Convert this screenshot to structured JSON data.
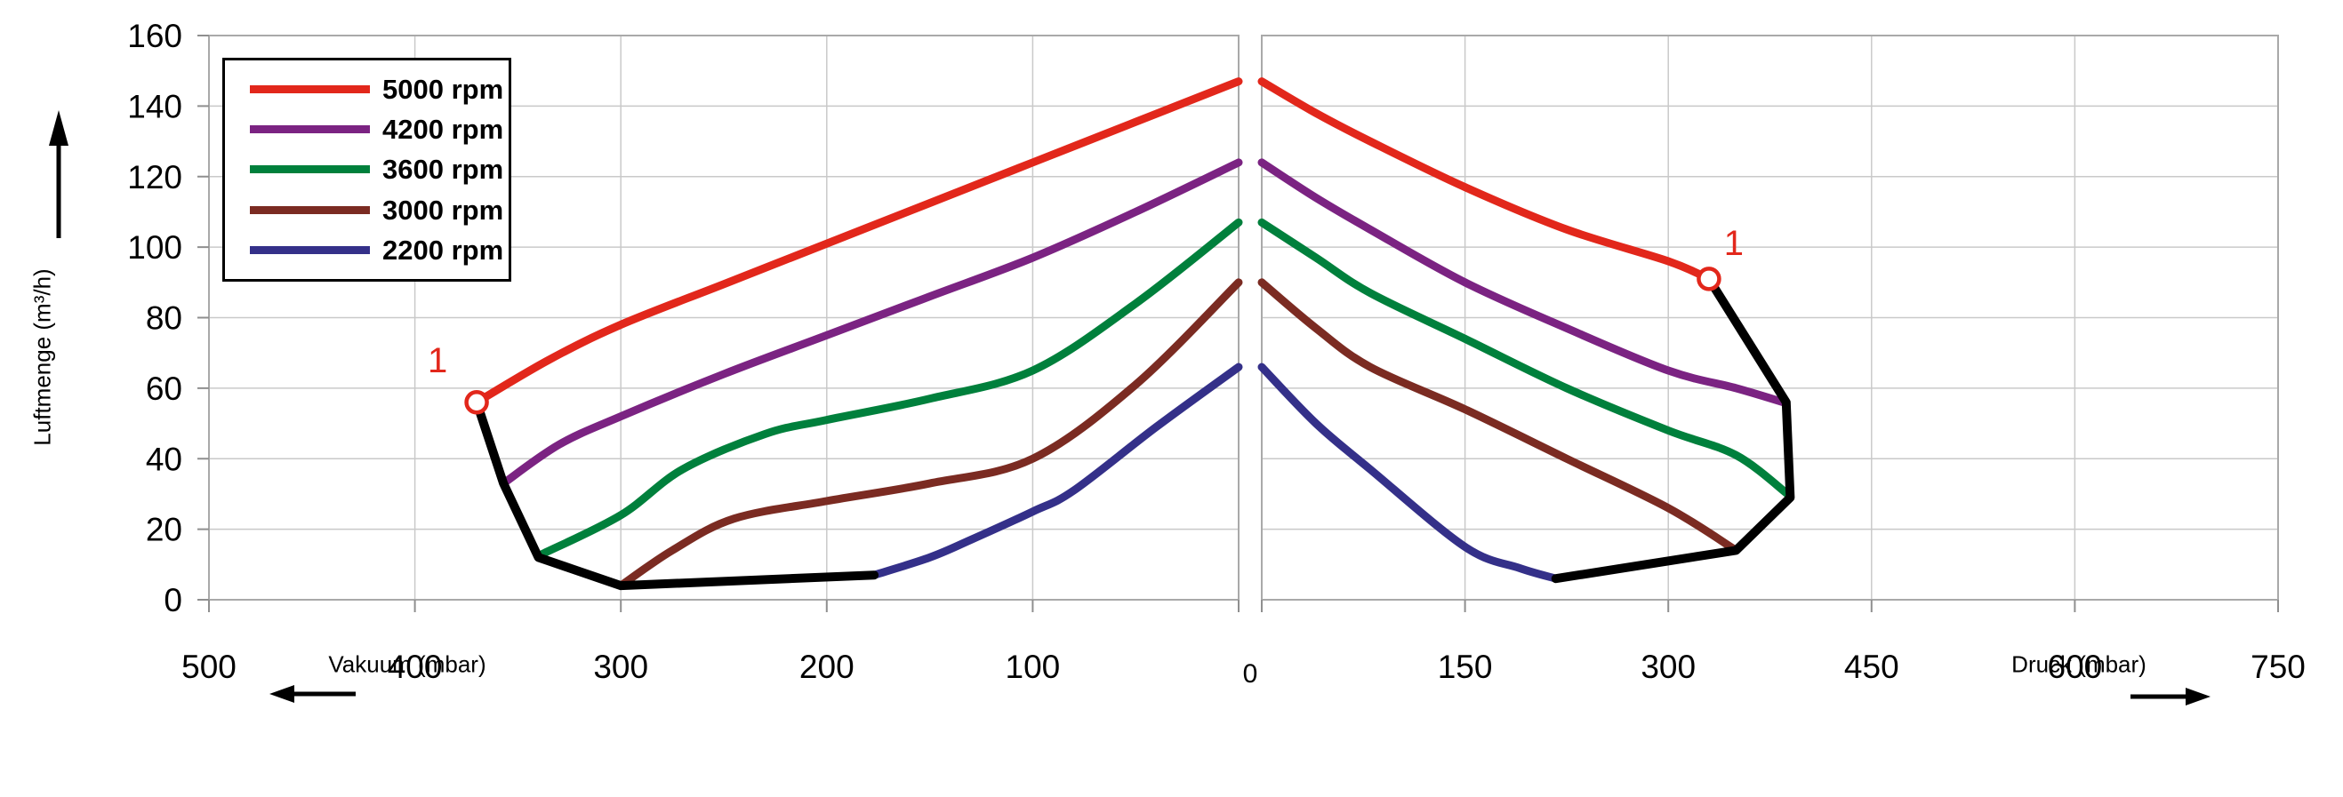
{
  "axes": {
    "y": {
      "title": "Luftmenge (m³/h)",
      "ticks": [
        0,
        20,
        40,
        60,
        80,
        100,
        120,
        140,
        160
      ],
      "range": [
        0,
        160
      ]
    },
    "x_vacuum": {
      "title": "Vakuum (mbar)",
      "ticks": [
        500,
        400,
        300,
        200,
        100
      ],
      "zero_label": "0",
      "range": [
        500,
        0
      ]
    },
    "x_pressure": {
      "title": "Druck (mbar)",
      "ticks": [
        150,
        300,
        450,
        600,
        750
      ],
      "range": [
        0,
        750
      ]
    }
  },
  "legend": {
    "entries": [
      {
        "label": "5000 rpm",
        "color": "#e2271b"
      },
      {
        "label": "4200 rpm",
        "color": "#7b2382"
      },
      {
        "label": "3600 rpm",
        "color": "#00803c"
      },
      {
        "label": "3000 rpm",
        "color": "#7b2b22"
      },
      {
        "label": "2200 rpm",
        "color": "#343089"
      }
    ]
  },
  "chart_data": {
    "type": "line",
    "title": "",
    "ylabel": "Luftmenge (m³/h)",
    "xlabel_left": "Vakuum (mbar)",
    "xlabel_right": "Druck (mbar)",
    "ylim": [
      0,
      160
    ],
    "x_vacuum_lim": [
      500,
      0
    ],
    "x_pressure_lim": [
      0,
      750
    ],
    "grid": true,
    "legend_position": "top-left",
    "colors": {
      "gridline": "#c9c9c9",
      "border": "#a9a9a9",
      "tick": "#8f8f8f",
      "envelope": "#000000",
      "annotation": "#e2271b"
    },
    "series": [
      {
        "name": "5000 rpm",
        "color": "#e2271b",
        "vacuum": [
          [
            0,
            147
          ],
          [
            50,
            135.5
          ],
          [
            100,
            124
          ],
          [
            150,
            112.5
          ],
          [
            200,
            101
          ],
          [
            250,
            89.5
          ],
          [
            300,
            78
          ],
          [
            335,
            68
          ],
          [
            370,
            56
          ]
        ],
        "pressure": [
          [
            0,
            147
          ],
          [
            40,
            138
          ],
          [
            80,
            130
          ],
          [
            150,
            117
          ],
          [
            225,
            105
          ],
          [
            300,
            96
          ],
          [
            330,
            91
          ]
        ]
      },
      {
        "name": "4200 rpm",
        "color": "#7b2382",
        "vacuum": [
          [
            0,
            124
          ],
          [
            50,
            110
          ],
          [
            100,
            97
          ],
          [
            150,
            86
          ],
          [
            200,
            75
          ],
          [
            250,
            64
          ],
          [
            300,
            52
          ],
          [
            330,
            44
          ],
          [
            357,
            33
          ]
        ],
        "pressure": [
          [
            0,
            124
          ],
          [
            40,
            114
          ],
          [
            80,
            105
          ],
          [
            150,
            90
          ],
          [
            225,
            77
          ],
          [
            300,
            65
          ],
          [
            350,
            60
          ],
          [
            385,
            56
          ]
        ]
      },
      {
        "name": "3600 rpm",
        "color": "#00803c",
        "vacuum": [
          [
            0,
            107
          ],
          [
            50,
            84
          ],
          [
            100,
            65
          ],
          [
            150,
            57
          ],
          [
            200,
            51
          ],
          [
            230,
            47
          ],
          [
            270,
            37
          ],
          [
            300,
            24
          ],
          [
            338,
            13
          ]
        ],
        "pressure": [
          [
            0,
            107
          ],
          [
            40,
            97
          ],
          [
            80,
            87
          ],
          [
            150,
            74
          ],
          [
            225,
            60
          ],
          [
            300,
            48
          ],
          [
            350,
            41
          ],
          [
            388,
            30
          ]
        ]
      },
      {
        "name": "3000 rpm",
        "color": "#7b2b22",
        "vacuum": [
          [
            0,
            90
          ],
          [
            50,
            61
          ],
          [
            100,
            40
          ],
          [
            150,
            33
          ],
          [
            200,
            28
          ],
          [
            245,
            23
          ],
          [
            275,
            14
          ],
          [
            300,
            4
          ]
        ],
        "pressure": [
          [
            0,
            90
          ],
          [
            40,
            77
          ],
          [
            80,
            66
          ],
          [
            150,
            54
          ],
          [
            225,
            40
          ],
          [
            300,
            26
          ],
          [
            350,
            14
          ]
        ]
      },
      {
        "name": "2200 rpm",
        "color": "#343089",
        "vacuum": [
          [
            0,
            66
          ],
          [
            40,
            49
          ],
          [
            80,
            31
          ],
          [
            100,
            25
          ],
          [
            130,
            17
          ],
          [
            150,
            12
          ],
          [
            177,
            7
          ]
        ],
        "pressure": [
          [
            0,
            66
          ],
          [
            40,
            50
          ],
          [
            80,
            37
          ],
          [
            150,
            15
          ],
          [
            190,
            9
          ],
          [
            217,
            6
          ]
        ]
      }
    ],
    "envelope": {
      "color": "#000000",
      "vacuum": [
        [
          370,
          56
        ],
        [
          357,
          33
        ],
        [
          340,
          12
        ],
        [
          300,
          4
        ],
        [
          177,
          7
        ]
      ],
      "pressure": [
        [
          330,
          91
        ],
        [
          387,
          56
        ],
        [
          390,
          29
        ],
        [
          350,
          14
        ],
        [
          217,
          6
        ]
      ]
    },
    "markers": [
      {
        "label": "1",
        "panel": "vacuum",
        "point": [
          370,
          56
        ],
        "color": "#e2271b"
      },
      {
        "label": "1",
        "panel": "pressure",
        "point": [
          330,
          91
        ],
        "color": "#e2271b"
      }
    ]
  }
}
